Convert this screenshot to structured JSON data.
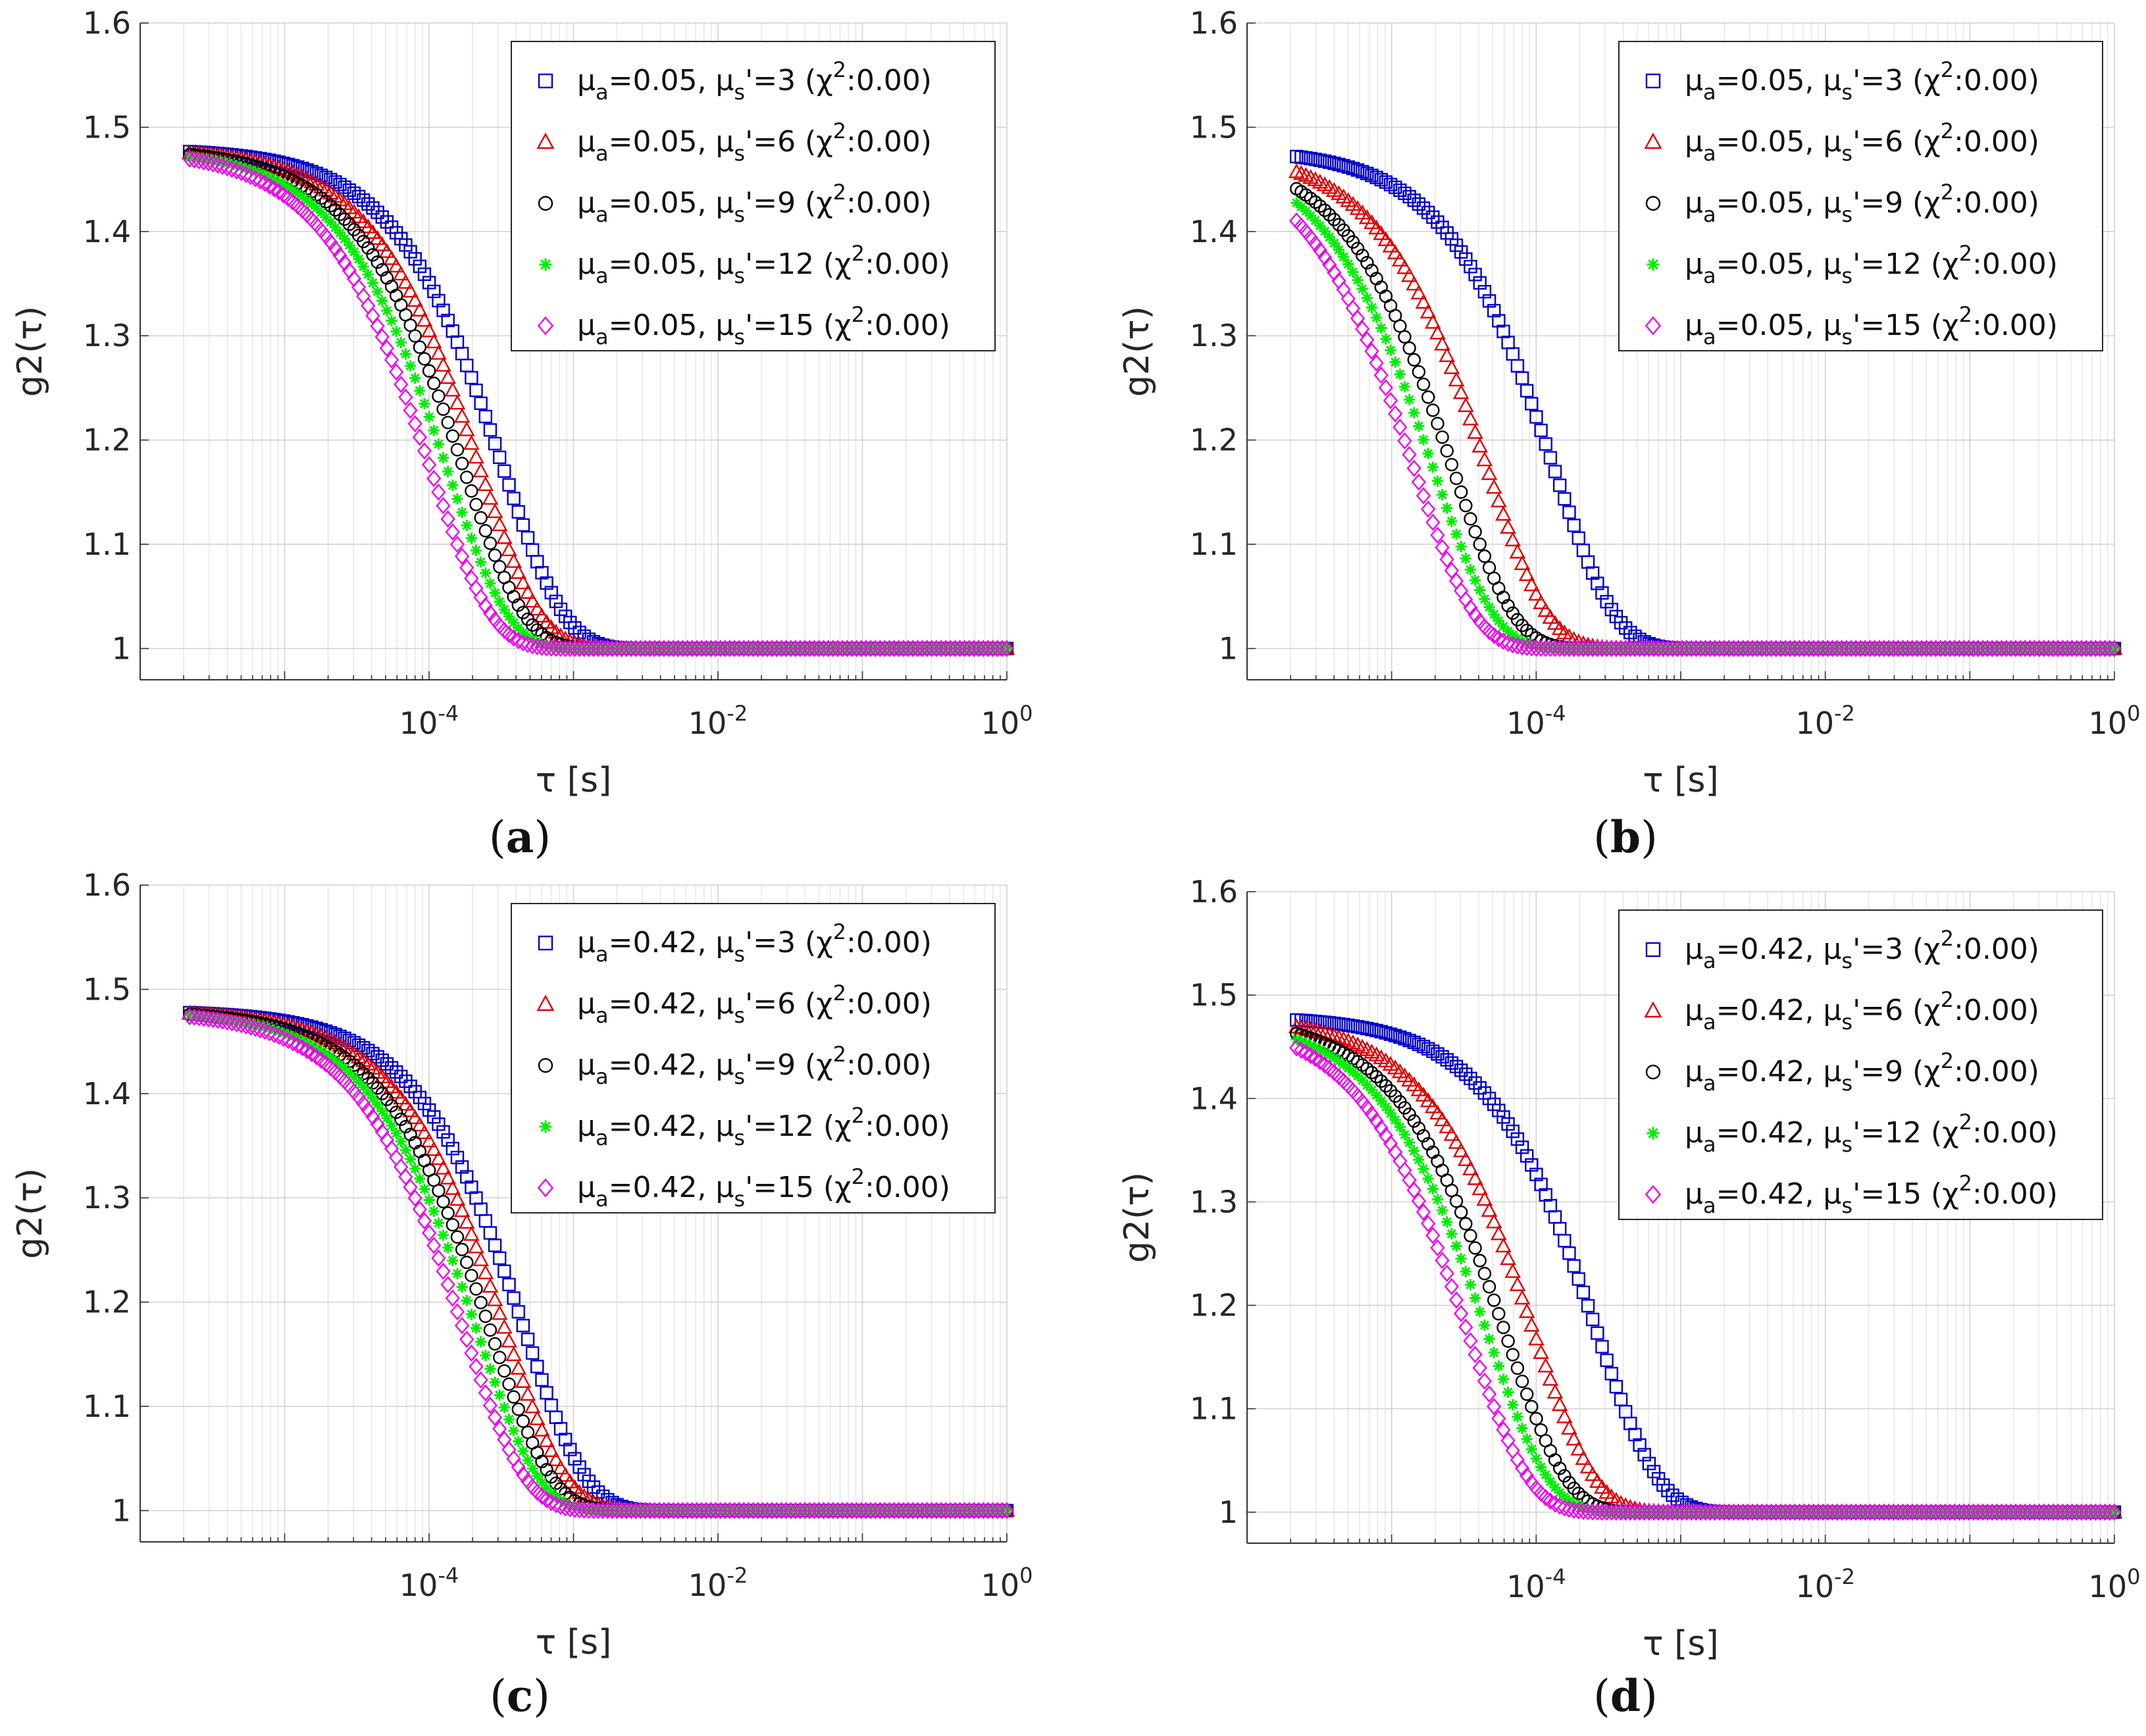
{
  "figure": {
    "series_colors": [
      "#0000cc",
      "#e00000",
      "#000000",
      "#00ee00",
      "#ee00ee"
    ],
    "marker_shapes": [
      "square",
      "triangle",
      "circle",
      "asterisk",
      "diamond"
    ]
  },
  "chart_data": [
    {
      "type": "scatter",
      "panel_label": "(a)",
      "panel_letter": "a",
      "xscale": "log",
      "xlim": [
        1e-06,
        1
      ],
      "ylim": [
        0.97,
        1.6
      ],
      "xlabel": "τ [s]",
      "ylabel": "g2(τ)",
      "xticks": [
        {
          "exp": "-4"
        },
        {
          "exp": "-2"
        },
        {
          "exp": "0"
        }
      ],
      "yticks": [
        "1",
        "1.1",
        "1.2",
        "1.3",
        "1.4",
        "1.5",
        "1.6"
      ],
      "ytick_values": [
        1,
        1.1,
        1.2,
        1.3,
        1.4,
        1.5,
        1.6
      ],
      "grid": true,
      "legend_position": "top-right",
      "beta": 0.48,
      "series": [
        {
          "mu_a": "0.05",
          "mu_s": "3",
          "chi2": "0.00",
          "tau_c": 0.00032
        },
        {
          "mu_a": "0.05",
          "mu_s": "6",
          "chi2": "0.00",
          "tau_c": 0.00022
        },
        {
          "mu_a": "0.05",
          "mu_s": "9",
          "chi2": "0.00",
          "tau_c": 0.00017
        },
        {
          "mu_a": "0.05",
          "mu_s": "12",
          "chi2": "0.00",
          "tau_c": 0.00013
        },
        {
          "mu_a": "0.05",
          "mu_s": "15",
          "chi2": "0.00",
          "tau_c": 0.0001
        }
      ]
    },
    {
      "type": "scatter",
      "panel_label": "(b)",
      "panel_letter": "b",
      "xscale": "log",
      "xlim": [
        1e-06,
        1
      ],
      "ylim": [
        0.97,
        1.6
      ],
      "xlabel": "τ [s]",
      "ylabel": "g2(τ)",
      "xticks": [
        {
          "exp": "-4"
        },
        {
          "exp": "-2"
        },
        {
          "exp": "0"
        }
      ],
      "yticks": [
        "1",
        "1.1",
        "1.2",
        "1.3",
        "1.4",
        "1.5",
        "1.6"
      ],
      "ytick_values": [
        1,
        1.1,
        1.2,
        1.3,
        1.4,
        1.5,
        1.6
      ],
      "grid": true,
      "legend_position": "top-right",
      "beta": 0.48,
      "series": [
        {
          "mu_a": "0.05",
          "mu_s": "3",
          "chi2": "0.00",
          "tau_c": 0.00013
        },
        {
          "mu_a": "0.05",
          "mu_s": "6",
          "chi2": "0.00",
          "tau_c": 4.5e-05
        },
        {
          "mu_a": "0.05",
          "mu_s": "9",
          "chi2": "0.00",
          "tau_c": 2.6e-05
        },
        {
          "mu_a": "0.05",
          "mu_s": "12",
          "chi2": "0.00",
          "tau_c": 1.9e-05
        },
        {
          "mu_a": "0.05",
          "mu_s": "15",
          "chi2": "0.00",
          "tau_c": 1.4e-05
        }
      ]
    },
    {
      "type": "scatter",
      "panel_label": "(c)",
      "panel_letter": "c",
      "xscale": "log",
      "xlim": [
        1e-06,
        1
      ],
      "ylim": [
        0.97,
        1.6
      ],
      "xlabel": "τ [s]",
      "ylabel": "g2(τ)",
      "xticks": [
        {
          "exp": "-4"
        },
        {
          "exp": "-2"
        },
        {
          "exp": "0"
        }
      ],
      "yticks": [
        "1",
        "1.1",
        "1.2",
        "1.3",
        "1.4",
        "1.5",
        "1.6"
      ],
      "ytick_values": [
        1,
        1.1,
        1.2,
        1.3,
        1.4,
        1.5,
        1.6
      ],
      "grid": true,
      "legend_position": "top-right",
      "beta": 0.48,
      "series": [
        {
          "mu_a": "0.42",
          "mu_s": "3",
          "chi2": "0.00",
          "tau_c": 0.00045
        },
        {
          "mu_a": "0.42",
          "mu_s": "6",
          "chi2": "0.00",
          "tau_c": 0.00033
        },
        {
          "mu_a": "0.42",
          "mu_s": "9",
          "chi2": "0.00",
          "tau_c": 0.00026
        },
        {
          "mu_a": "0.42",
          "mu_s": "12",
          "chi2": "0.00",
          "tau_c": 0.00021
        },
        {
          "mu_a": "0.42",
          "mu_s": "15",
          "chi2": "0.00",
          "tau_c": 0.00017
        }
      ]
    },
    {
      "type": "scatter",
      "panel_label": "(d)",
      "panel_letter": "d",
      "xscale": "log",
      "xlim": [
        1e-06,
        1
      ],
      "ylim": [
        0.97,
        1.6
      ],
      "xlabel": "τ [s]",
      "ylabel": "g2(τ)",
      "xticks": [
        {
          "exp": "-4"
        },
        {
          "exp": "-2"
        },
        {
          "exp": "0"
        }
      ],
      "yticks": [
        "1",
        "1.1",
        "1.2",
        "1.3",
        "1.4",
        "1.5",
        "1.6"
      ],
      "ytick_values": [
        1,
        1.1,
        1.2,
        1.3,
        1.4,
        1.5,
        1.6
      ],
      "grid": true,
      "legend_position": "top-right",
      "beta": 0.48,
      "series": [
        {
          "mu_a": "0.42",
          "mu_s": "3",
          "chi2": "0.00",
          "tau_c": 0.00026
        },
        {
          "mu_a": "0.42",
          "mu_s": "6",
          "chi2": "0.00",
          "tau_c": 9.5e-05
        },
        {
          "mu_a": "0.42",
          "mu_s": "9",
          "chi2": "0.00",
          "tau_c": 6e-05
        },
        {
          "mu_a": "0.42",
          "mu_s": "12",
          "chi2": "0.00",
          "tau_c": 4.5e-05
        },
        {
          "mu_a": "0.42",
          "mu_s": "15",
          "chi2": "0.00",
          "tau_c": 3.3e-05
        }
      ]
    }
  ]
}
